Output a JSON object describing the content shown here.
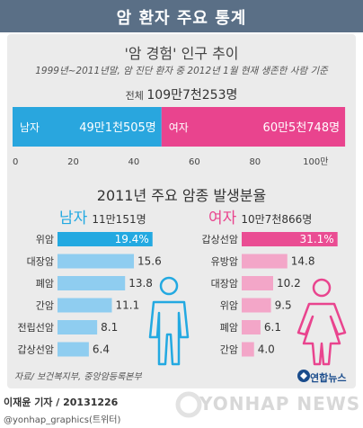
{
  "header": {
    "title": "암 환자 주요 통계"
  },
  "survivors": {
    "title": "'암 경험' 인구 추이",
    "subtitle": "1999년~2011년말, 암 진단 환자 중 2012년 1월 현재 생존한 사람 기준",
    "total_label": "전체",
    "total_value": "109만7천253명"
  },
  "section2": {
    "title": "2011년 주요 암종 발생분율"
  },
  "male": {
    "label": "남자",
    "total": "11만151명"
  },
  "female": {
    "label": "여자",
    "total": "10만7천866명"
  },
  "chart_data": [
    {
      "type": "bar",
      "orientation": "horizontal-stacked",
      "categories": [
        "남자",
        "여자"
      ],
      "values": [
        49.1505,
        60.5748
      ],
      "value_labels": [
        "49만1천505명",
        "60만5천748명"
      ],
      "xlim": [
        0,
        110
      ],
      "x_ticks": [
        "0",
        "20",
        "40",
        "60",
        "80",
        "100만"
      ],
      "colors": [
        "#29a6de",
        "#e9448e"
      ]
    },
    {
      "type": "bar",
      "orientation": "horizontal",
      "title": "남자",
      "categories": [
        "위암",
        "대장암",
        "폐암",
        "간암",
        "전립선암",
        "갑상선암"
      ],
      "values": [
        19.4,
        15.6,
        13.8,
        11.1,
        8.1,
        6.4
      ],
      "value_labels": [
        "19.4%",
        "15.6",
        "13.8",
        "11.1",
        "8.1",
        "6.4"
      ],
      "colors": [
        "#23a9e1",
        "#8fcdf0"
      ]
    },
    {
      "type": "bar",
      "orientation": "horizontal",
      "title": "여자",
      "categories": [
        "갑상선암",
        "유방암",
        "대장암",
        "위암",
        "폐암",
        "간암"
      ],
      "values": [
        31.1,
        14.8,
        10.2,
        9.5,
        6.1,
        4.0
      ],
      "value_labels": [
        "31.1%",
        "14.8",
        "10.2",
        "9.5",
        "6.1",
        "4.0"
      ],
      "colors": [
        "#ea4d93",
        "#f3a6c8"
      ]
    }
  ],
  "footer": {
    "source": "자료/ 보건복지부, 중앙암등록본부",
    "credit": "이재윤 기자 / 20131226",
    "twitter": "@yonhap_graphics(트위터)",
    "logo": "연합뉴스",
    "watermark": "YONHAP NEWS"
  }
}
